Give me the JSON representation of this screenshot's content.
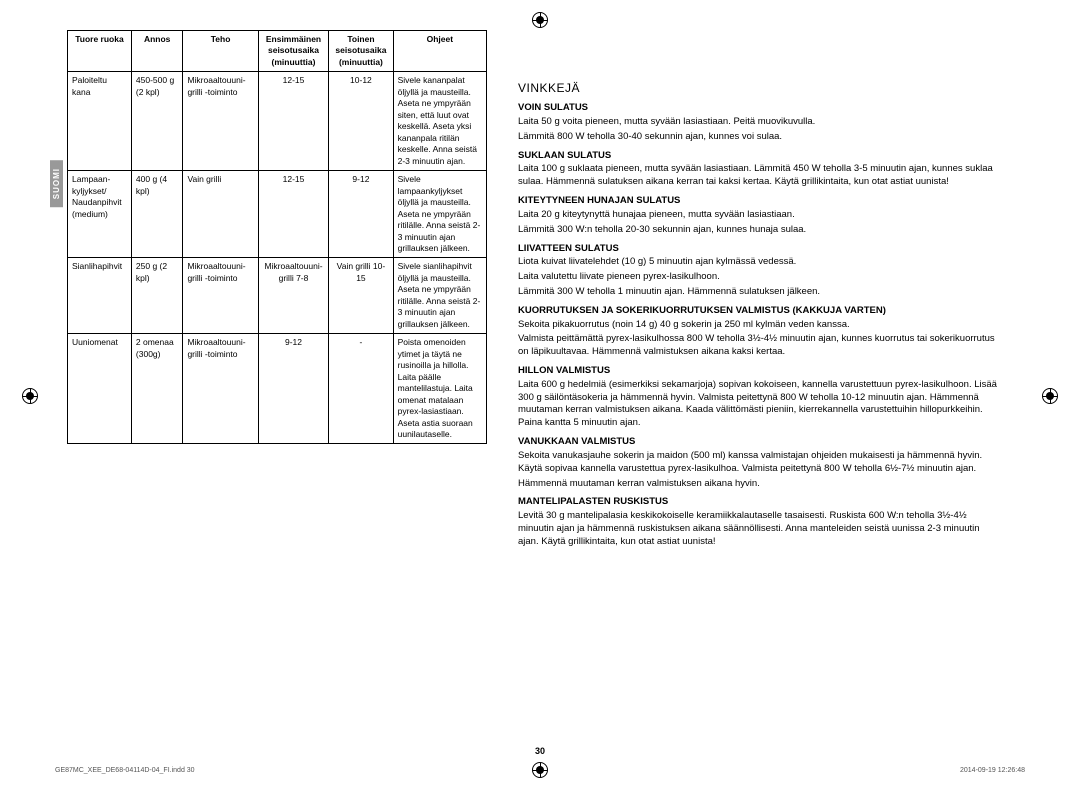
{
  "sideTab": "SUOMI",
  "table": {
    "headers": [
      "Tuore ruoka",
      "Annos",
      "Teho",
      "Ensimmäinen seisotusaika (minuuttia)",
      "Toinen seisotusaika (minuuttia)",
      "Ohjeet"
    ],
    "rows": [
      {
        "c1": "Paloiteltu kana",
        "c2": "450-500 g (2 kpl)",
        "c3": "Mikroaaltouuni-grilli -toiminto",
        "c4": "12-15",
        "c5": "10-12",
        "c6": "Sivele kananpalat öljyllä ja mausteilla. Aseta ne ympyrään siten, että luut ovat keskellä. Aseta yksi kananpala ritilän keskelle. Anna seistä 2-3 minuutin ajan."
      },
      {
        "c1": "Lampaan-kyljykset/ Naudanpihvit (medium)",
        "c2": "400 g (4 kpl)",
        "c3": "Vain grilli",
        "c4": "12-15",
        "c5": "9-12",
        "c6": "Sivele lampaankyljykset öljyllä ja mausteilla. Aseta ne ympyrään ritilälle. Anna seistä 2-3 minuutin ajan grillauksen jälkeen."
      },
      {
        "c1": "Sianlihapihvit",
        "c2": "250 g (2 kpl)",
        "c3": "Mikroaaltouuni-grilli -toiminto",
        "c4": "Mikroaaltouuni-grilli 7-8",
        "c5": "Vain grilli 10-15",
        "c6": "Sivele sianlihapihvit öljyllä ja mausteilla. Aseta ne ympyrään ritilälle. Anna seistä 2-3 minuutin ajan grillauksen jälkeen."
      },
      {
        "c1": "Uuniomenat",
        "c2": "2 omenaa (300g)",
        "c3": "Mikroaaltouuni-grilli -toiminto",
        "c4": "9-12",
        "c5": "-",
        "c6": "Poista omenoiden ytimet ja täytä ne rusinoilla ja hillolla. Laita päälle mantelilastuja. Laita omenat matalaan pyrex-lasiastiaan. Aseta astia suoraan uunilautaselle."
      }
    ]
  },
  "right": {
    "title": "VINKKEJÄ",
    "sections": [
      {
        "h": "VOIN SULATUS",
        "p": [
          "Laita 50 g voita pieneen, mutta syvään lasiastiaan. Peitä muovikuvulla.",
          "Lämmitä 800 W teholla 30-40 sekunnin ajan, kunnes voi sulaa."
        ]
      },
      {
        "h": "SUKLAAN SULATUS",
        "p": [
          "Laita 100 g suklaata pieneen, mutta syvään lasiastiaan. Lämmitä 450 W teholla 3-5 minuutin ajan, kunnes suklaa sulaa. Hämmennä sulatuksen aikana kerran tai kaksi kertaa. Käytä grillikintaita, kun otat astiat uunista!"
        ]
      },
      {
        "h": "KITEYTYNEEN HUNAJAN SULATUS",
        "p": [
          "Laita 20 g kiteytynyttä hunajaa pieneen, mutta syvään lasiastiaan.",
          "Lämmitä 300 W:n teholla 20-30 sekunnin ajan, kunnes hunaja sulaa."
        ]
      },
      {
        "h": "LIIVATTEEN SULATUS",
        "p": [
          "Liota kuivat liivatelehdet (10 g) 5 minuutin ajan kylmässä vedessä.",
          "Laita valutettu liivate pieneen pyrex-lasikulhoon.",
          "Lämmitä 300 W teholla 1 minuutin ajan. Hämmennä sulatuksen jälkeen."
        ]
      },
      {
        "h": "KUORRUTUKSEN JA SOKERIKUORRUTUKSEN VALMISTUS (KAKKUJA VARTEN)",
        "p": [
          "Sekoita pikakuorrutus (noin 14 g) 40 g sokerin ja 250 ml kylmän veden kanssa.",
          "Valmista peittämättä pyrex-lasikulhossa 800 W teholla 3½-4½ minuutin ajan, kunnes kuorrutus tai sokerikuorrutus on läpikuultavaa. Hämmennä valmistuksen aikana kaksi kertaa."
        ]
      },
      {
        "h": "HILLON VALMISTUS",
        "p": [
          "Laita 600 g hedelmiä (esimerkiksi sekamarjoja) sopivan kokoiseen, kannella varustettuun pyrex-lasikulhoon. Lisää 300 g säilöntäsokeria ja hämmennä hyvin. Valmista peitettynä 800 W teholla 10-12 minuutin ajan. Hämmennä muutaman kerran valmistuksen aikana. Kaada välittömästi pieniin, kierrekannella varustettuihin hillopurkkeihin. Paina kantta 5 minuutin ajan."
        ]
      },
      {
        "h": "VANUKKAAN VALMISTUS",
        "p": [
          "Sekoita vanukasjauhe sokerin ja maidon (500 ml) kanssa valmistajan ohjeiden mukaisesti ja hämmennä hyvin. Käytä sopivaa kannella varustettua pyrex-lasikulhoa. Valmista peitettynä 800 W teholla 6½-7½ minuutin ajan.",
          "Hämmennä muutaman kerran valmistuksen aikana hyvin."
        ]
      },
      {
        "h": "MANTELIPALASTEN RUSKISTUS",
        "p": [
          "Levitä 30 g mantelipalasia keskikokoiselle keramiikkalautaselle tasaisesti. Ruskista 600 W:n teholla 3½-4½ minuutin ajan ja hämmennä ruskistuksen aikana säännöllisesti. Anna manteleiden seistä uunissa 2-3 minuutin ajan. Käytä grillikintaita, kun otat astiat uunista!"
        ]
      }
    ]
  },
  "pageNumber": "30",
  "footerLeft": "GE87MC_XEE_DE68-04114D-04_FI.indd   30",
  "footerRight": "2014-09-19   12:26:48"
}
